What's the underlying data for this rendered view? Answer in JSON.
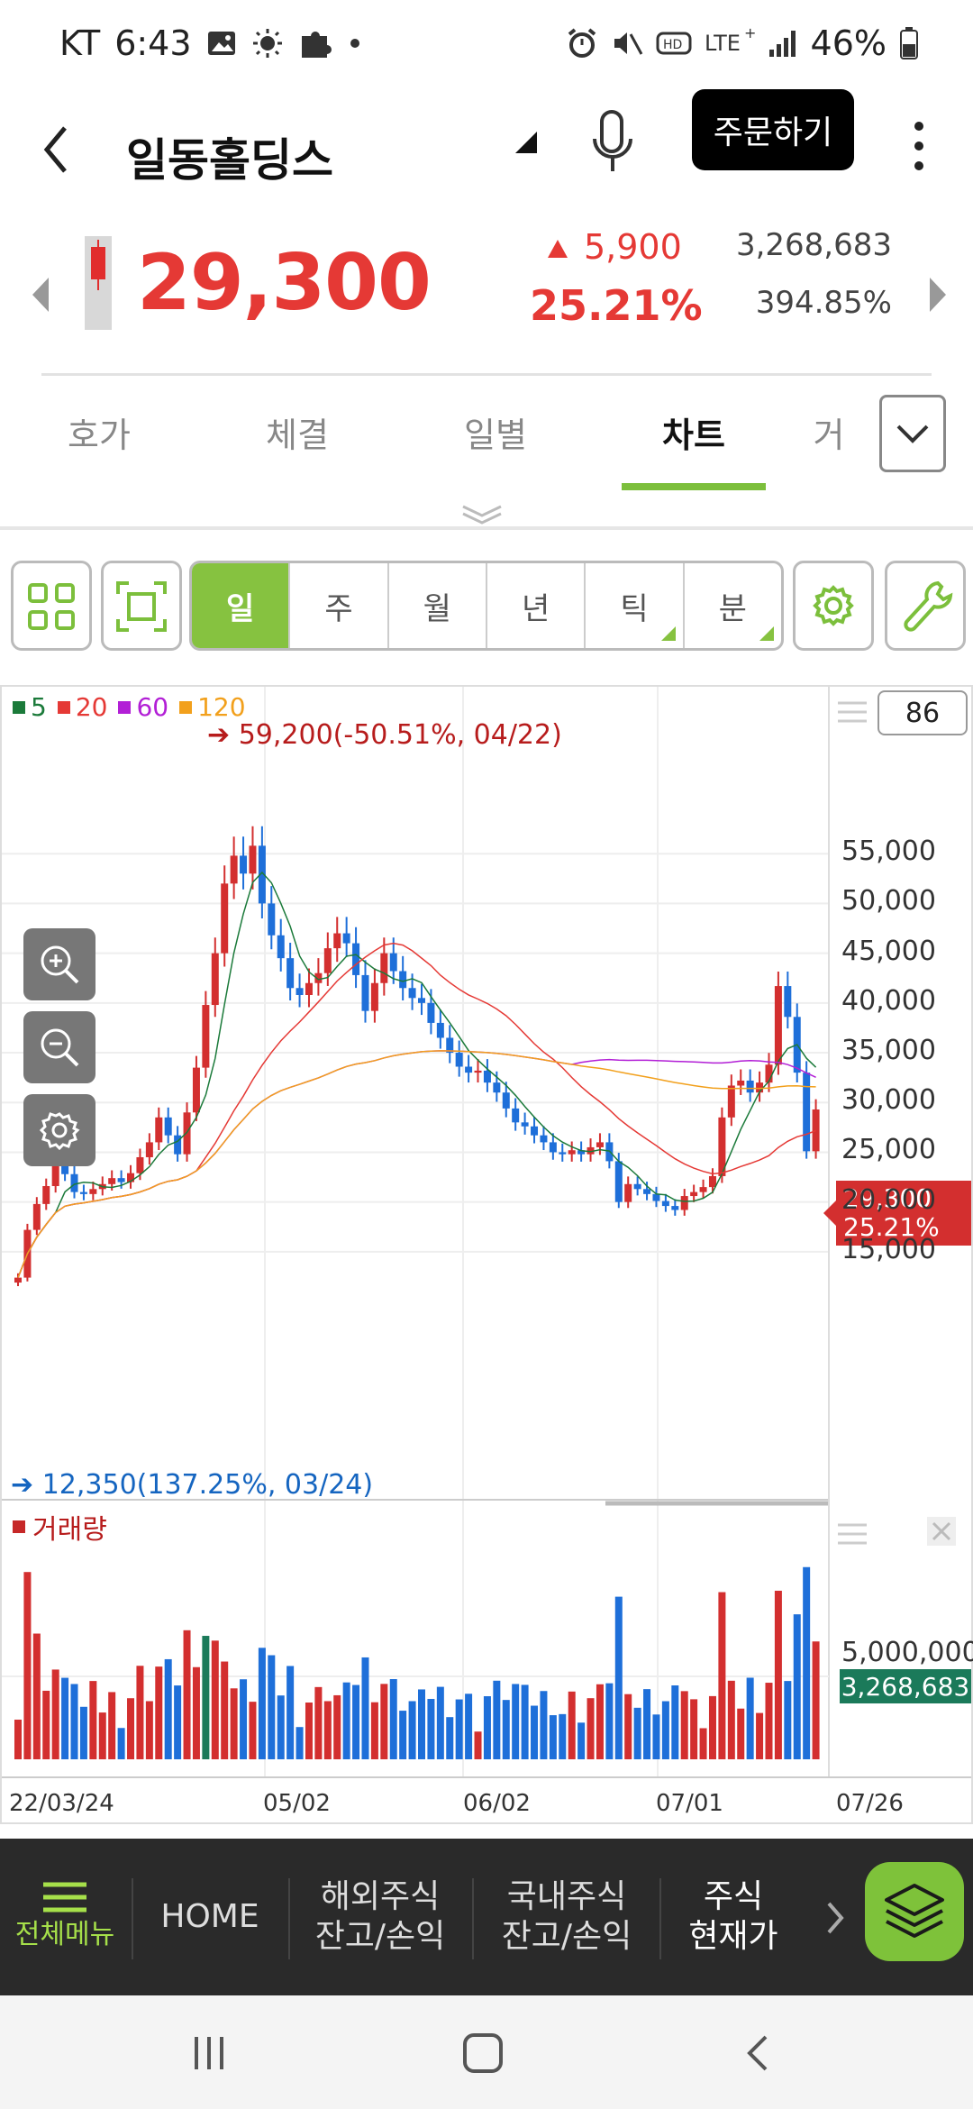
{
  "status_bar": {
    "carrier": "KT",
    "time": "6:43",
    "battery": "46%"
  },
  "header": {
    "stock_name": "일동홀딩스",
    "order_button": "주문하기"
  },
  "price": {
    "current": "29,300",
    "change_amount": "5,900",
    "change_pct": "25.21%",
    "volume": "3,268,683",
    "volume_ratio": "394.85%",
    "color_up": "#e53935"
  },
  "tabs": [
    {
      "label": "호가"
    },
    {
      "label": "체결"
    },
    {
      "label": "일별"
    },
    {
      "label": "차트"
    },
    {
      "label": "거"
    }
  ],
  "active_tab": "차트",
  "periods": [
    {
      "label": "일"
    },
    {
      "label": "주"
    },
    {
      "label": "월"
    },
    {
      "label": "년"
    },
    {
      "label": "틱"
    },
    {
      "label": "분"
    }
  ],
  "active_period": "일",
  "chart_data": {
    "type": "candlestick",
    "legend": [
      "5",
      "20",
      "60",
      "120"
    ],
    "legend_colors": [
      "#1b7a3a",
      "#e53935",
      "#b21fd6",
      "#f2a01c"
    ],
    "count": "86",
    "high_label": "59,200(-50.51%, 04/22)",
    "low_label": "12,350(137.25%, 03/24)",
    "price_axis": [
      "55,000",
      "50,000",
      "45,000",
      "40,000",
      "35,000",
      "30,000",
      "25,000",
      "20,000",
      "15,000"
    ],
    "price_axis_values": [
      55000,
      50000,
      45000,
      40000,
      35000,
      30000,
      25000,
      20000,
      15000
    ],
    "ylim": [
      12000,
      60000
    ],
    "current_badge": [
      "29,300",
      "25.21%"
    ],
    "volume_title": "거래량",
    "volume_axis": "5,000,000",
    "volume_badge": "3,268,683",
    "dates": [
      "22/03/24",
      "05/02",
      "06/02",
      "07/01",
      "07/26"
    ],
    "closes": [
      12400,
      17200,
      19800,
      21600,
      23700,
      22800,
      21000,
      20800,
      21300,
      21800,
      22400,
      22000,
      22900,
      24500,
      26000,
      28500,
      26700,
      24800,
      29000,
      33500,
      39800,
      45000,
      52000,
      54800,
      53000,
      55800,
      50000,
      46800,
      44500,
      41500,
      40800,
      42000,
      43000,
      45500,
      47000,
      46000,
      42800,
      39200,
      42000,
      45000,
      43200,
      41500,
      40500,
      40000,
      38000,
      36500,
      35000,
      33600,
      33000,
      33200,
      32000,
      31000,
      29400,
      28000,
      27600,
      26700,
      26000,
      25000,
      24800,
      25200,
      24800,
      25500,
      26000,
      24100,
      20000,
      21800,
      21300,
      20800,
      20100,
      19600,
      19200,
      20600,
      21000,
      21500,
      22600,
      28500,
      31700,
      32200,
      31000,
      32000,
      33800,
      41700,
      38600,
      33000,
      25100,
      29300
    ]
  },
  "bottom_menu": [
    {
      "label": "전체메뉴"
    },
    {
      "label": "HOME"
    },
    {
      "label": "해외주식\n잔고/손익"
    },
    {
      "label": "국내주식\n잔고/손익"
    },
    {
      "label": "주식\n현재가"
    }
  ]
}
